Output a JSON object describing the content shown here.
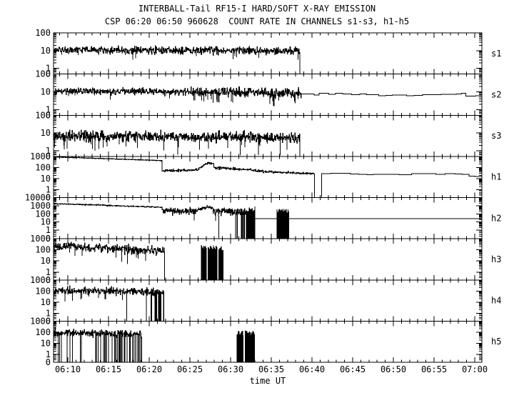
{
  "chart_data": {
    "type": "line",
    "title": "INTERBALL-Tail RF15-I HARD/SOFT X-RAY EMISSION",
    "subtitle": "CSP 06:20 06:50 960628  COUNT RATE IN CHANNELS s1-s3, h1-h5",
    "xlabel": "time UT",
    "x_axis": {
      "t_min": 8.25,
      "t_max": 60.88,
      "minor_step_min": 1,
      "major_ticks": [
        {
          "t": 10,
          "label": "06:10"
        },
        {
          "t": 15,
          "label": "06:15"
        },
        {
          "t": 20,
          "label": "06:20"
        },
        {
          "t": 25,
          "label": "06:25"
        },
        {
          "t": 30,
          "label": "06:30"
        },
        {
          "t": 35,
          "label": "06:35"
        },
        {
          "t": 40,
          "label": "06:40"
        },
        {
          "t": 45,
          "label": "06:45"
        },
        {
          "t": 50,
          "label": "06:50"
        },
        {
          "t": 55,
          "label": "06:55"
        },
        {
          "t": 60,
          "label": "07:00"
        }
      ]
    },
    "grid": false,
    "legend_position": "right-of-each-panel",
    "panels": [
      {
        "id": "s1",
        "label": "s1",
        "top_exp": 2,
        "n_decades": 2,
        "y_ticks": [
          {
            "label": "100",
            "v": 100
          },
          {
            "label": "10",
            "v": 10
          },
          {
            "label": "1",
            "v": 1
          },
          {
            "label": "0",
            "v": 0
          }
        ],
        "segments": [
          {
            "kind": "noisy",
            "t0": 8.25,
            "t1": 38.5,
            "v0": 11,
            "v1": 9.5,
            "sigma": 0.1,
            "spike_p": 0.015,
            "spike_frac": 0.45
          },
          {
            "kind": "floor",
            "t0": 38.5,
            "t1": 60.88
          }
        ]
      },
      {
        "id": "s2",
        "label": "s2",
        "top_exp": 2,
        "n_decades": 2,
        "y_ticks": [
          {
            "label": "100",
            "v": 100
          },
          {
            "label": "10",
            "v": 10
          },
          {
            "label": "1",
            "v": 1
          },
          {
            "label": "0",
            "v": 0
          }
        ],
        "segments": [
          {
            "kind": "noisy",
            "t0": 8.25,
            "t1": 25,
            "v0": 11,
            "v1": 10,
            "sigma": 0.09,
            "spike_p": 0.02,
            "spike_frac": 0.5
          },
          {
            "kind": "noisy",
            "t0": 25,
            "t1": 38.7,
            "v0": 10,
            "v1": 8,
            "sigma": 0.13,
            "spike_p": 0.05,
            "spike_frac": 0.3
          },
          {
            "kind": "steppy",
            "t0": 38.7,
            "t1": 58.9,
            "v0": 7.5,
            "v1": 6.5,
            "step_min": 0.9,
            "sigma": 0.05
          },
          {
            "kind": "steppy",
            "t0": 58.9,
            "t1": 60.88,
            "v0": 5.8,
            "v1": 5.8,
            "step_min": 1.2,
            "sigma": 0.01
          }
        ]
      },
      {
        "id": "s3",
        "label": "s3",
        "top_exp": 2,
        "n_decades": 2,
        "y_ticks": [
          {
            "label": "100",
            "v": 100
          },
          {
            "label": "10",
            "v": 10
          },
          {
            "label": "1",
            "v": 1
          },
          {
            "label": "0",
            "v": 0
          }
        ],
        "segments": [
          {
            "kind": "noisy",
            "t0": 8.25,
            "t1": 38.5,
            "v0": 6.5,
            "v1": 5.8,
            "sigma": 0.14,
            "spike_p": 0.025,
            "spike_frac": 0.25
          },
          {
            "kind": "dropline",
            "t": 23.5,
            "v_top": 5,
            "v_bot": 0.3
          },
          {
            "kind": "dropline",
            "t": 31.2,
            "v_top": 5,
            "v_bot": 0.2
          },
          {
            "kind": "dropline",
            "t": 33.4,
            "v_top": 5,
            "v_bot": 0.25
          },
          {
            "kind": "dropline",
            "t": 36.1,
            "v_top": 5,
            "v_bot": 0.2
          },
          {
            "kind": "floor",
            "t0": 38.5,
            "t1": 60.88
          }
        ]
      },
      {
        "id": "h1",
        "label": "h1",
        "top_exp": 3,
        "n_decades": 3,
        "y_ticks": [
          {
            "label": "1000",
            "v": 1000
          },
          {
            "label": "100",
            "v": 100
          },
          {
            "label": "10",
            "v": 10
          },
          {
            "label": "1",
            "v": 1
          },
          {
            "label": "0",
            "v": 0
          }
        ],
        "segments": [
          {
            "kind": "noisy",
            "t0": 8.25,
            "t1": 21.6,
            "v0": 900,
            "v1": 420,
            "sigma": 0.015
          },
          {
            "kind": "noisy",
            "t0": 21.6,
            "t1": 25.9,
            "v0": 52,
            "v1": 58,
            "sigma": 0.06
          },
          {
            "kind": "noisy",
            "t0": 25.9,
            "t1": 27.15,
            "v0": 65,
            "v1": 260,
            "sigma": 0.05
          },
          {
            "kind": "noisy",
            "t0": 27.15,
            "t1": 27.95,
            "v0": 270,
            "v1": 220,
            "sigma": 0.04
          },
          {
            "kind": "noisy",
            "t0": 27.95,
            "t1": 34,
            "v0": 100,
            "v1": 48,
            "sigma": 0.06
          },
          {
            "kind": "noisy",
            "t0": 34,
            "t1": 40.3,
            "v0": 42,
            "v1": 27,
            "sigma": 0.05
          },
          {
            "kind": "floor",
            "t0": 40.3,
            "t1": 41.2
          },
          {
            "kind": "steppy",
            "t0": 41.2,
            "t1": 59.3,
            "v0": 28,
            "v1": 25,
            "step_min": 1.1,
            "sigma": 0.035
          },
          {
            "kind": "steppy",
            "t0": 59.3,
            "t1": 60.88,
            "v0": 15,
            "v1": 14,
            "step_min": 1,
            "sigma": 0.02
          }
        ]
      },
      {
        "id": "h2",
        "label": "h2",
        "top_exp": 4,
        "n_decades": 4,
        "y_ticks": [
          {
            "label": "10000",
            "v": 10000
          },
          {
            "label": "1000",
            "v": 1000
          },
          {
            "label": "100",
            "v": 100
          },
          {
            "label": "10",
            "v": 10
          },
          {
            "label": "1",
            "v": 1
          },
          {
            "label": "0",
            "v": 0
          }
        ],
        "segments": [
          {
            "kind": "noisy",
            "t0": 8.25,
            "t1": 21.6,
            "v0": 1800,
            "v1": 650,
            "sigma": 0.035
          },
          {
            "kind": "noisy",
            "t0": 21.6,
            "t1": 25.8,
            "v0": 240,
            "v1": 210,
            "sigma": 0.2,
            "spike_p": 0.06,
            "spike_frac": 0.15
          },
          {
            "kind": "noisy",
            "t0": 25.8,
            "t1": 27.1,
            "v0": 260,
            "v1": 750,
            "sigma": 0.1
          },
          {
            "kind": "noisy",
            "t0": 27.1,
            "t1": 27.85,
            "v0": 750,
            "v1": 480,
            "sigma": 0.1
          },
          {
            "kind": "dropline",
            "t": 28.55,
            "v_top": 60,
            "v_bot": 0
          },
          {
            "kind": "noisy",
            "t0": 27.85,
            "t1": 30.5,
            "v0": 230,
            "v1": 190,
            "sigma": 0.22,
            "spike_p": 0.05,
            "spike_frac": 0.12
          },
          {
            "kind": "noisy",
            "t0": 30.5,
            "t1": 31.6,
            "v0": 190,
            "v1": 180,
            "sigma": 0.25,
            "drop_p": 0.18
          },
          {
            "kind": "noisy",
            "t0": 31.6,
            "t1": 33.0,
            "v0": 180,
            "v1": 150,
            "sigma": 0.3,
            "drop_p": 0.8
          },
          {
            "kind": "flat",
            "t0": 33.0,
            "t1": 60.88,
            "v": 26
          },
          {
            "kind": "burst",
            "t0": 35.7,
            "t1": 37.2,
            "top_lo": 120,
            "top_hi": 450,
            "density": 0.85
          }
        ]
      },
      {
        "id": "h3",
        "label": "h3",
        "top_exp": 3,
        "n_decades": 3,
        "y_ticks": [
          {
            "label": "1000",
            "v": 1000
          },
          {
            "label": "100",
            "v": 100
          },
          {
            "label": "10",
            "v": 10
          },
          {
            "label": "1",
            "v": 1
          },
          {
            "label": "0",
            "v": 0
          }
        ],
        "segments": [
          {
            "kind": "noisy",
            "t0": 8.25,
            "t1": 16,
            "v0": 210,
            "v1": 140,
            "sigma": 0.18,
            "spike_p": 0.04,
            "spike_frac": 0.18
          },
          {
            "kind": "noisy",
            "t0": 16,
            "t1": 21.9,
            "v0": 130,
            "v1": 70,
            "sigma": 0.2,
            "spike_p": 0.07,
            "spike_frac": 0.12
          },
          {
            "kind": "floor",
            "t0": 21.9,
            "t1": 60.88
          },
          {
            "kind": "burst",
            "t0": 26.4,
            "t1": 27.05,
            "top_lo": 90,
            "top_hi": 260,
            "density": 0.85
          },
          {
            "kind": "burst",
            "t0": 27.25,
            "t1": 28.35,
            "top_lo": 90,
            "top_hi": 260,
            "density": 0.85
          },
          {
            "kind": "burst",
            "t0": 28.55,
            "t1": 29.1,
            "top_lo": 80,
            "top_hi": 220,
            "density": 0.8
          }
        ]
      },
      {
        "id": "h4",
        "label": "h4",
        "top_exp": 3,
        "n_decades": 3,
        "y_ticks": [
          {
            "label": "1000",
            "v": 1000
          },
          {
            "label": "100",
            "v": 100
          },
          {
            "label": "10",
            "v": 10
          },
          {
            "label": "1",
            "v": 1
          },
          {
            "label": "0",
            "v": 0
          }
        ],
        "segments": [
          {
            "kind": "noisy",
            "t0": 8.25,
            "t1": 16.8,
            "v0": 110,
            "v1": 95,
            "sigma": 0.16,
            "spike_p": 0.05,
            "spike_frac": 0.2
          },
          {
            "kind": "noisy",
            "t0": 16.8,
            "t1": 20.2,
            "v0": 95,
            "v1": 85,
            "sigma": 0.17,
            "drop_p": 0.05
          },
          {
            "kind": "noisy",
            "t0": 20.2,
            "t1": 21.8,
            "v0": 85,
            "v1": 80,
            "sigma": 0.18,
            "drop_p": 0.4
          },
          {
            "kind": "floor",
            "t0": 21.8,
            "t1": 60.88
          }
        ]
      },
      {
        "id": "h5",
        "label": "h5",
        "top_exp": 3,
        "n_decades": 3,
        "y_ticks": [
          {
            "label": "1000",
            "v": 1000
          },
          {
            "label": "100",
            "v": 100
          },
          {
            "label": "10",
            "v": 10
          },
          {
            "label": "1",
            "v": 1
          },
          {
            "label": "0",
            "v": 0
          }
        ],
        "segments": [
          {
            "kind": "noisy",
            "t0": 8.25,
            "t1": 13,
            "v0": 90,
            "v1": 80,
            "sigma": 0.16,
            "drop_p": 0.1
          },
          {
            "kind": "noisy",
            "t0": 13,
            "t1": 19.1,
            "v0": 80,
            "v1": 70,
            "sigma": 0.17,
            "drop_p": 0.22
          },
          {
            "kind": "floor",
            "t0": 19.1,
            "t1": 60.88
          },
          {
            "kind": "burst",
            "t0": 30.8,
            "t1": 31.55,
            "top_lo": 50,
            "top_hi": 140,
            "density": 0.85
          },
          {
            "kind": "burst",
            "t0": 31.8,
            "t1": 33.0,
            "top_lo": 50,
            "top_hi": 140,
            "density": 0.85
          }
        ]
      }
    ],
    "colors": {
      "trace": "#000000",
      "frame": "#000000",
      "background": "#ffffff"
    }
  }
}
